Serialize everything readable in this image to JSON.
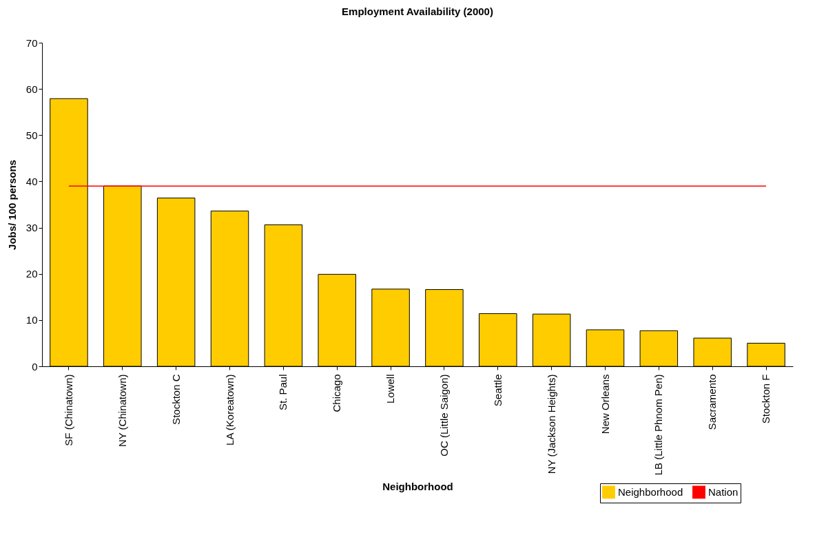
{
  "chart_data": {
    "type": "bar",
    "title": "Employment Availability (2000)",
    "xlabel": "Neighborhood",
    "ylabel": "Jobs/ 100 persons",
    "categories": [
      "SF (Chinatown)",
      "NY (Chinatown)",
      "Stockton C",
      "LA (Koreatown)",
      "St. Paul",
      "Chicago",
      "Lowell",
      "OC (Little Saigon)",
      "Seattle",
      "NY (Jackson Heights)",
      "New Orleans",
      "LB (Little Phnom Pen)",
      "Sacramento",
      "Stockton F"
    ],
    "series": [
      {
        "name": "Neighborhood",
        "color": "#ffcc00",
        "values": [
          57.9,
          39.0,
          36.4,
          33.6,
          30.6,
          19.9,
          16.7,
          16.6,
          11.4,
          11.3,
          7.9,
          7.7,
          6.1,
          5.0
        ]
      },
      {
        "name": "Nation",
        "type": "line",
        "color": "#ff0000",
        "values": [
          39,
          39,
          39,
          39,
          39,
          39,
          39,
          39,
          39,
          39,
          39,
          39,
          39,
          39
        ]
      }
    ],
    "ylim": [
      0,
      70
    ],
    "yticks": [
      0,
      10,
      20,
      30,
      40,
      50,
      60,
      70
    ],
    "grid": false,
    "legend": "bottom right"
  }
}
